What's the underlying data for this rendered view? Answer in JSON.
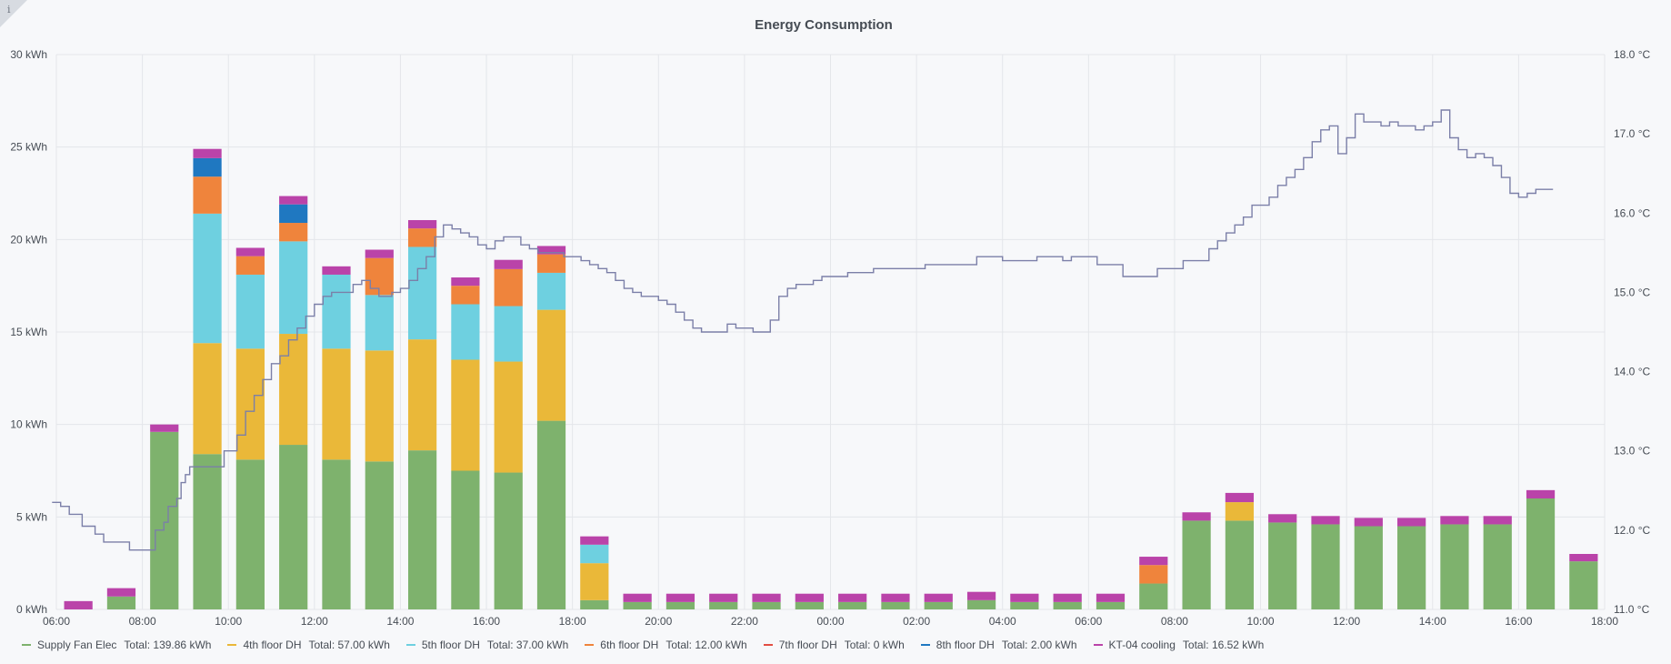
{
  "chart_data": {
    "type": "bar",
    "title": "Energy Consumption",
    "x_ticks": [
      "06:00",
      "08:00",
      "10:00",
      "12:00",
      "14:00",
      "16:00",
      "18:00",
      "20:00",
      "22:00",
      "00:00",
      "02:00",
      "04:00",
      "06:00",
      "08:00",
      "10:00",
      "12:00",
      "14:00",
      "16:00",
      "18:00"
    ],
    "y_left": {
      "ticks": [
        "0 kWh",
        "5 kWh",
        "10 kWh",
        "15 kWh",
        "20 kWh",
        "25 kWh",
        "30 kWh"
      ],
      "ylim": [
        0,
        30
      ],
      "unit": "kWh"
    },
    "y_right": {
      "ticks": [
        "11.0 °C",
        "12.0 °C",
        "13.0 °C",
        "14.0 °C",
        "15.0 °C",
        "16.0 °C",
        "17.0 °C",
        "18.0 °C"
      ],
      "ylim": [
        11,
        18
      ],
      "unit": "°C"
    },
    "x_range_hours": [
      0,
      36
    ],
    "bar_hours": [
      0,
      1,
      2,
      3,
      4,
      5,
      6,
      7,
      8,
      9,
      10,
      11,
      12,
      13,
      14,
      15,
      16,
      17,
      18,
      19,
      20,
      21,
      22,
      23,
      24,
      25,
      26,
      27,
      28,
      29,
      30,
      31,
      32,
      33,
      34,
      35
    ],
    "series": [
      {
        "name": "Supply Fan Elec",
        "color": "#7eb26d",
        "total_label": "Total: 139.86 kWh",
        "values": [
          0,
          0.7,
          9.6,
          8.4,
          8.1,
          8.9,
          8.1,
          8.0,
          8.6,
          7.5,
          7.4,
          10.2,
          0.5,
          0.4,
          0.4,
          0.4,
          0.4,
          0.4,
          0.4,
          0.4,
          0.4,
          0.5,
          0.4,
          0.4,
          0.4,
          1.4,
          4.8,
          4.8,
          4.7,
          4.6,
          4.5,
          4.5,
          4.6,
          4.6,
          6.0,
          2.6
        ]
      },
      {
        "name": "4th floor DH",
        "color": "#eab839",
        "total_label": "Total: 57.00 kWh",
        "values": [
          0,
          0,
          0,
          6.0,
          6.0,
          6.0,
          6.0,
          6.0,
          6.0,
          6.0,
          6.0,
          6.0,
          2.0,
          0,
          0,
          0,
          0,
          0,
          0,
          0,
          0,
          0,
          0,
          0,
          0,
          0,
          0,
          1.0,
          0,
          0,
          0,
          0,
          0,
          0,
          0,
          0
        ]
      },
      {
        "name": "5th floor DH",
        "color": "#6ed0e0",
        "total_label": "Total: 37.00 kWh",
        "values": [
          0,
          0,
          0,
          7.0,
          4.0,
          5.0,
          4.0,
          3.0,
          5.0,
          3.0,
          3.0,
          2.0,
          1.0,
          0,
          0,
          0,
          0,
          0,
          0,
          0,
          0,
          0,
          0,
          0,
          0,
          0,
          0,
          0,
          0,
          0,
          0,
          0,
          0,
          0,
          0,
          0
        ]
      },
      {
        "name": "6th floor DH",
        "color": "#ef843c",
        "total_label": "Total: 12.00 kWh",
        "values": [
          0,
          0,
          0,
          2.0,
          1.0,
          1.0,
          0,
          2.0,
          1.0,
          1.0,
          2.0,
          1.0,
          0,
          0,
          0,
          0,
          0,
          0,
          0,
          0,
          0,
          0,
          0,
          0,
          0,
          1.0,
          0,
          0,
          0,
          0,
          0,
          0,
          0,
          0,
          0,
          0
        ]
      },
      {
        "name": "7th floor DH",
        "color": "#e24d42",
        "total_label": "Total: 0 kWh",
        "values": [
          0,
          0,
          0,
          0,
          0,
          0,
          0,
          0,
          0,
          0,
          0,
          0,
          0,
          0,
          0,
          0,
          0,
          0,
          0,
          0,
          0,
          0,
          0,
          0,
          0,
          0,
          0,
          0,
          0,
          0,
          0,
          0,
          0,
          0,
          0,
          0
        ]
      },
      {
        "name": "8th floor DH",
        "color": "#1f78c1",
        "total_label": "Total: 2.00 kWh",
        "values": [
          0,
          0,
          0,
          1.0,
          0,
          1.0,
          0,
          0,
          0,
          0,
          0,
          0,
          0,
          0,
          0,
          0,
          0,
          0,
          0,
          0,
          0,
          0,
          0,
          0,
          0,
          0,
          0,
          0,
          0,
          0,
          0,
          0,
          0,
          0,
          0,
          0
        ]
      },
      {
        "name": "KT-04 cooling",
        "color": "#ba43a9",
        "total_label": "Total: 16.52 kWh",
        "values": [
          0.45,
          0.45,
          0.4,
          0.5,
          0.45,
          0.45,
          0.45,
          0.45,
          0.45,
          0.45,
          0.5,
          0.45,
          0.45,
          0.45,
          0.45,
          0.45,
          0.45,
          0.45,
          0.45,
          0.45,
          0.45,
          0.45,
          0.45,
          0.45,
          0.45,
          0.45,
          0.45,
          0.5,
          0.45,
          0.45,
          0.45,
          0.45,
          0.45,
          0.45,
          0.45,
          0.4
        ]
      }
    ],
    "temperature_line": {
      "color": "#7b7fa8",
      "points": [
        [
          -0.1,
          12.35
        ],
        [
          0.1,
          12.3
        ],
        [
          0.3,
          12.2
        ],
        [
          0.6,
          12.05
        ],
        [
          0.9,
          11.95
        ],
        [
          1.1,
          11.85
        ],
        [
          1.6,
          11.85
        ],
        [
          1.7,
          11.75
        ],
        [
          2.2,
          11.75
        ],
        [
          2.3,
          12.0
        ],
        [
          2.5,
          12.1
        ],
        [
          2.6,
          12.3
        ],
        [
          2.8,
          12.4
        ],
        [
          2.9,
          12.6
        ],
        [
          3.0,
          12.7
        ],
        [
          3.1,
          12.8
        ],
        [
          3.8,
          12.8
        ],
        [
          3.9,
          13.0
        ],
        [
          4.2,
          13.2
        ],
        [
          4.4,
          13.5
        ],
        [
          4.6,
          13.7
        ],
        [
          4.8,
          13.9
        ],
        [
          5.0,
          14.1
        ],
        [
          5.2,
          14.2
        ],
        [
          5.4,
          14.4
        ],
        [
          5.6,
          14.55
        ],
        [
          5.8,
          14.7
        ],
        [
          6.0,
          14.85
        ],
        [
          6.2,
          14.95
        ],
        [
          6.4,
          15.0
        ],
        [
          6.8,
          15.0
        ],
        [
          6.9,
          15.1
        ],
        [
          7.1,
          15.15
        ],
        [
          7.3,
          15.05
        ],
        [
          7.5,
          14.95
        ],
        [
          7.8,
          15.0
        ],
        [
          8.0,
          15.05
        ],
        [
          8.2,
          15.15
        ],
        [
          8.4,
          15.3
        ],
        [
          8.6,
          15.45
        ],
        [
          8.8,
          15.7
        ],
        [
          9.0,
          15.85
        ],
        [
          9.2,
          15.8
        ],
        [
          9.4,
          15.75
        ],
        [
          9.6,
          15.7
        ],
        [
          9.8,
          15.6
        ],
        [
          10.0,
          15.55
        ],
        [
          10.2,
          15.65
        ],
        [
          10.4,
          15.7
        ],
        [
          10.6,
          15.7
        ],
        [
          10.8,
          15.6
        ],
        [
          11.0,
          15.55
        ],
        [
          11.2,
          15.5
        ],
        [
          11.6,
          15.5
        ],
        [
          11.8,
          15.45
        ],
        [
          12.0,
          15.45
        ],
        [
          12.2,
          15.4
        ],
        [
          12.4,
          15.35
        ],
        [
          12.6,
          15.3
        ],
        [
          12.8,
          15.25
        ],
        [
          13.0,
          15.15
        ],
        [
          13.2,
          15.05
        ],
        [
          13.4,
          15.0
        ],
        [
          13.6,
          14.95
        ],
        [
          14.0,
          14.9
        ],
        [
          14.2,
          14.85
        ],
        [
          14.4,
          14.75
        ],
        [
          14.6,
          14.65
        ],
        [
          14.8,
          14.55
        ],
        [
          15.0,
          14.5
        ],
        [
          15.4,
          14.5
        ],
        [
          15.6,
          14.6
        ],
        [
          15.8,
          14.55
        ],
        [
          16.0,
          14.55
        ],
        [
          16.2,
          14.5
        ],
        [
          16.4,
          14.5
        ],
        [
          16.6,
          14.65
        ],
        [
          16.8,
          14.95
        ],
        [
          17.0,
          15.05
        ],
        [
          17.2,
          15.1
        ],
        [
          17.4,
          15.1
        ],
        [
          17.6,
          15.15
        ],
        [
          17.8,
          15.2
        ],
        [
          18.2,
          15.2
        ],
        [
          18.4,
          15.25
        ],
        [
          18.8,
          15.25
        ],
        [
          19.0,
          15.3
        ],
        [
          20.0,
          15.3
        ],
        [
          20.2,
          15.35
        ],
        [
          21.2,
          15.35
        ],
        [
          21.4,
          15.45
        ],
        [
          21.8,
          15.45
        ],
        [
          22.0,
          15.4
        ],
        [
          22.6,
          15.4
        ],
        [
          22.8,
          15.45
        ],
        [
          23.2,
          15.45
        ],
        [
          23.4,
          15.4
        ],
        [
          23.6,
          15.45
        ],
        [
          24.0,
          15.45
        ],
        [
          24.2,
          15.35
        ],
        [
          24.6,
          15.35
        ],
        [
          24.8,
          15.2
        ],
        [
          25.4,
          15.2
        ],
        [
          25.6,
          15.3
        ],
        [
          26.0,
          15.3
        ],
        [
          26.2,
          15.4
        ],
        [
          26.6,
          15.4
        ],
        [
          26.8,
          15.55
        ],
        [
          27.0,
          15.65
        ],
        [
          27.2,
          15.75
        ],
        [
          27.4,
          15.85
        ],
        [
          27.6,
          15.95
        ],
        [
          27.8,
          16.1
        ],
        [
          28.0,
          16.1
        ],
        [
          28.2,
          16.2
        ],
        [
          28.4,
          16.35
        ],
        [
          28.6,
          16.45
        ],
        [
          28.8,
          16.55
        ],
        [
          29.0,
          16.7
        ],
        [
          29.2,
          16.9
        ],
        [
          29.4,
          17.05
        ],
        [
          29.6,
          17.1
        ],
        [
          29.8,
          16.75
        ],
        [
          30.0,
          16.95
        ],
        [
          30.2,
          17.25
        ],
        [
          30.4,
          17.15
        ],
        [
          30.6,
          17.15
        ],
        [
          30.8,
          17.1
        ],
        [
          31.0,
          17.15
        ],
        [
          31.2,
          17.1
        ],
        [
          31.4,
          17.1
        ],
        [
          31.6,
          17.05
        ],
        [
          31.8,
          17.1
        ],
        [
          32.0,
          17.15
        ],
        [
          32.2,
          17.3
        ],
        [
          32.4,
          16.95
        ],
        [
          32.6,
          16.8
        ],
        [
          32.8,
          16.7
        ],
        [
          33.0,
          16.75
        ],
        [
          33.2,
          16.7
        ],
        [
          33.4,
          16.6
        ],
        [
          33.6,
          16.45
        ],
        [
          33.8,
          16.25
        ],
        [
          34.0,
          16.2
        ],
        [
          34.2,
          16.25
        ],
        [
          34.4,
          16.3
        ],
        [
          34.8,
          16.3
        ]
      ]
    }
  }
}
